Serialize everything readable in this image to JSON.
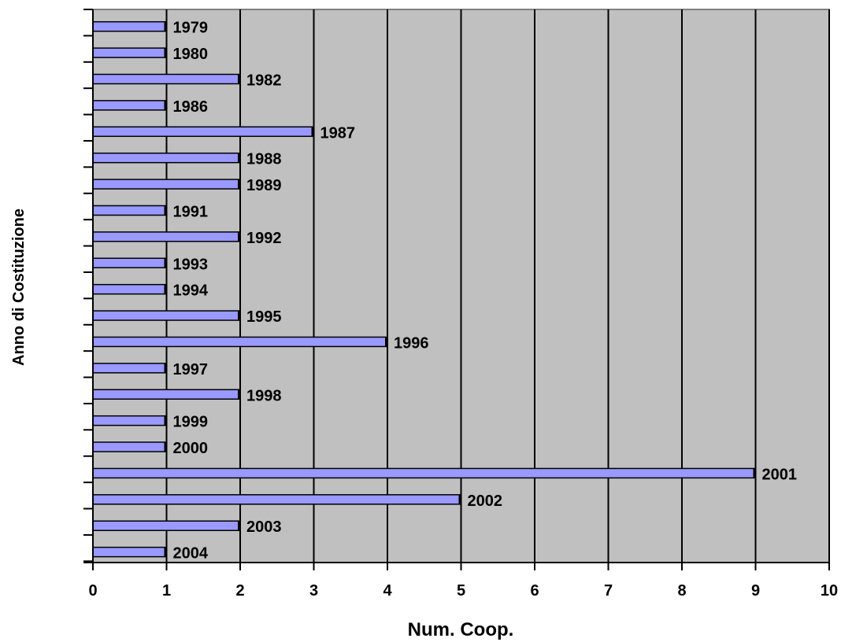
{
  "chart_data": {
    "type": "bar",
    "orientation": "horizontal",
    "categories": [
      "1979",
      "1980",
      "1982",
      "1986",
      "1987",
      "1988",
      "1989",
      "1991",
      "1992",
      "1993",
      "1994",
      "1995",
      "1996",
      "1997",
      "1998",
      "1999",
      "2000",
      "2001",
      "2002",
      "2003",
      "2004"
    ],
    "values": [
      1,
      1,
      2,
      1,
      3,
      2,
      2,
      1,
      2,
      1,
      1,
      2,
      4,
      1,
      2,
      1,
      1,
      9,
      5,
      2,
      1
    ],
    "xlabel": "Num. Coop.",
    "ylabel": "Anno di Costituzione",
    "xlim": [
      0,
      10
    ],
    "xticks": [
      0,
      1,
      2,
      3,
      4,
      5,
      6,
      7,
      8,
      9,
      10
    ],
    "grid": "vertical",
    "legend": "none",
    "colors": {
      "bar_fill": "#9999ff",
      "plot_bg": "#c0c0c0",
      "grid": "#000000",
      "frame": "#808080"
    }
  }
}
